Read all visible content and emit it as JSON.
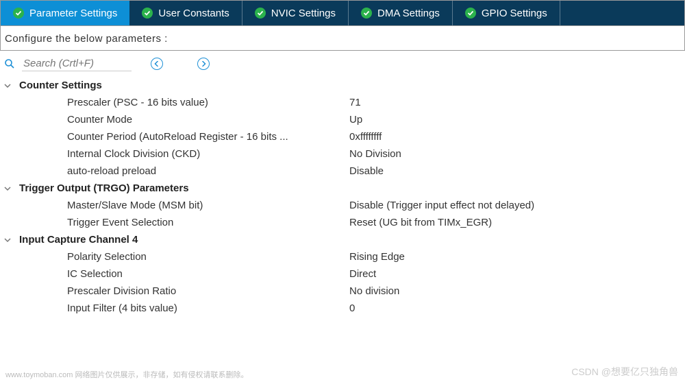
{
  "colors": {
    "tab_bar_bg": "#0a3a5a",
    "tab_active_bg": "#0d8fd6",
    "check_bg": "#2bb24c",
    "accent": "#1e90d6",
    "text": "#333333",
    "muted": "#bbbbbb"
  },
  "tabs": [
    {
      "label": "Parameter Settings",
      "active": true
    },
    {
      "label": "User Constants",
      "active": false
    },
    {
      "label": "NVIC Settings",
      "active": false
    },
    {
      "label": "DMA Settings",
      "active": false
    },
    {
      "label": "GPIO Settings",
      "active": false
    }
  ],
  "subheader": "Configure the below parameters :",
  "search": {
    "placeholder": "Search (Crtl+F)"
  },
  "sections": [
    {
      "title": "Counter Settings",
      "rows": [
        {
          "label": "Prescaler (PSC - 16 bits value)",
          "value": "71"
        },
        {
          "label": "Counter Mode",
          "value": "Up"
        },
        {
          "label": "Counter Period (AutoReload Register - 16 bits ...",
          "value": "0xffffffff"
        },
        {
          "label": "Internal Clock Division (CKD)",
          "value": "No Division"
        },
        {
          "label": "auto-reload preload",
          "value": "Disable"
        }
      ]
    },
    {
      "title": "Trigger Output (TRGO) Parameters",
      "rows": [
        {
          "label": "Master/Slave Mode (MSM bit)",
          "value": "Disable (Trigger input effect not delayed)"
        },
        {
          "label": "Trigger Event Selection",
          "value": "Reset (UG bit from TIMx_EGR)"
        }
      ]
    },
    {
      "title": "Input Capture Channel 4",
      "rows": [
        {
          "label": "Polarity Selection",
          "value": "Rising Edge"
        },
        {
          "label": "IC Selection",
          "value": "Direct"
        },
        {
          "label": "Prescaler Division Ratio",
          "value": "No division"
        },
        {
          "label": "Input Filter (4 bits value)",
          "value": "0"
        }
      ]
    }
  ],
  "footer_left": "www.toymoban.com 网络图片仅供展示，非存储，如有侵权请联系删除。",
  "footer_right": "CSDN @想要亿只独角兽"
}
